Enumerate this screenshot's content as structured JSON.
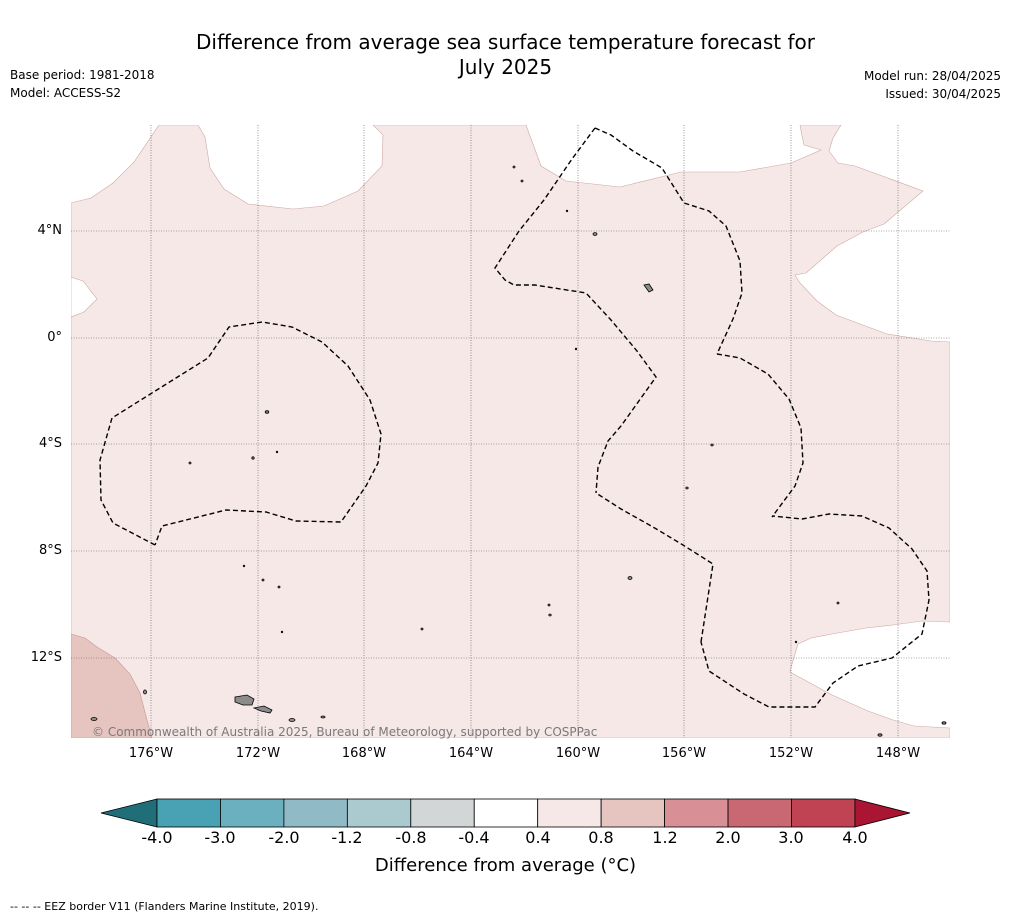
{
  "header": {
    "title_line1": "Difference from average sea surface temperature forecast for",
    "title_line2": "July 2025",
    "base_period": "Base period: 1981-2018",
    "model": "Model: ACCESS-S2",
    "model_run": "Model run: 28/04/2025",
    "issued": "Issued: 30/04/2025"
  },
  "map": {
    "lat_labels": [
      "4°N",
      "0°",
      "4°S",
      "8°S",
      "12°S"
    ],
    "lon_labels": [
      "176°W",
      "172°W",
      "168°W",
      "164°W",
      "160°W",
      "156°W",
      "152°W",
      "148°W"
    ],
    "copyright": "© Commonwealth of Australia 2025, Bureau of Meteorology, supported by COSPPac",
    "colors": {
      "band_0.4_0.8": "#f5e8e6",
      "band_0.8_1.2": "#e6c4bf",
      "land": "#8c8c8c",
      "eez_border": "#000000",
      "grid": "#555555"
    }
  },
  "colorbar": {
    "ticks": [
      "-4.0",
      "-3.0",
      "-2.0",
      "-1.2",
      "-0.8",
      "-0.4",
      "0.4",
      "0.8",
      "1.2",
      "2.0",
      "3.0",
      "4.0"
    ],
    "colors": [
      "#1f6e78",
      "#48a2b3",
      "#6ab0be",
      "#8fbac6",
      "#aacad0",
      "#d3d6d6",
      "#ffffff",
      "#f5e8e6",
      "#e6c4bf",
      "#d88f95",
      "#c96873",
      "#bf4352",
      "#a91532"
    ],
    "label": "Difference from average (°C)"
  },
  "footer": {
    "eez_legend": "--  --  -- EEZ border V11 (Flanders Marine Institute, 2019)."
  }
}
